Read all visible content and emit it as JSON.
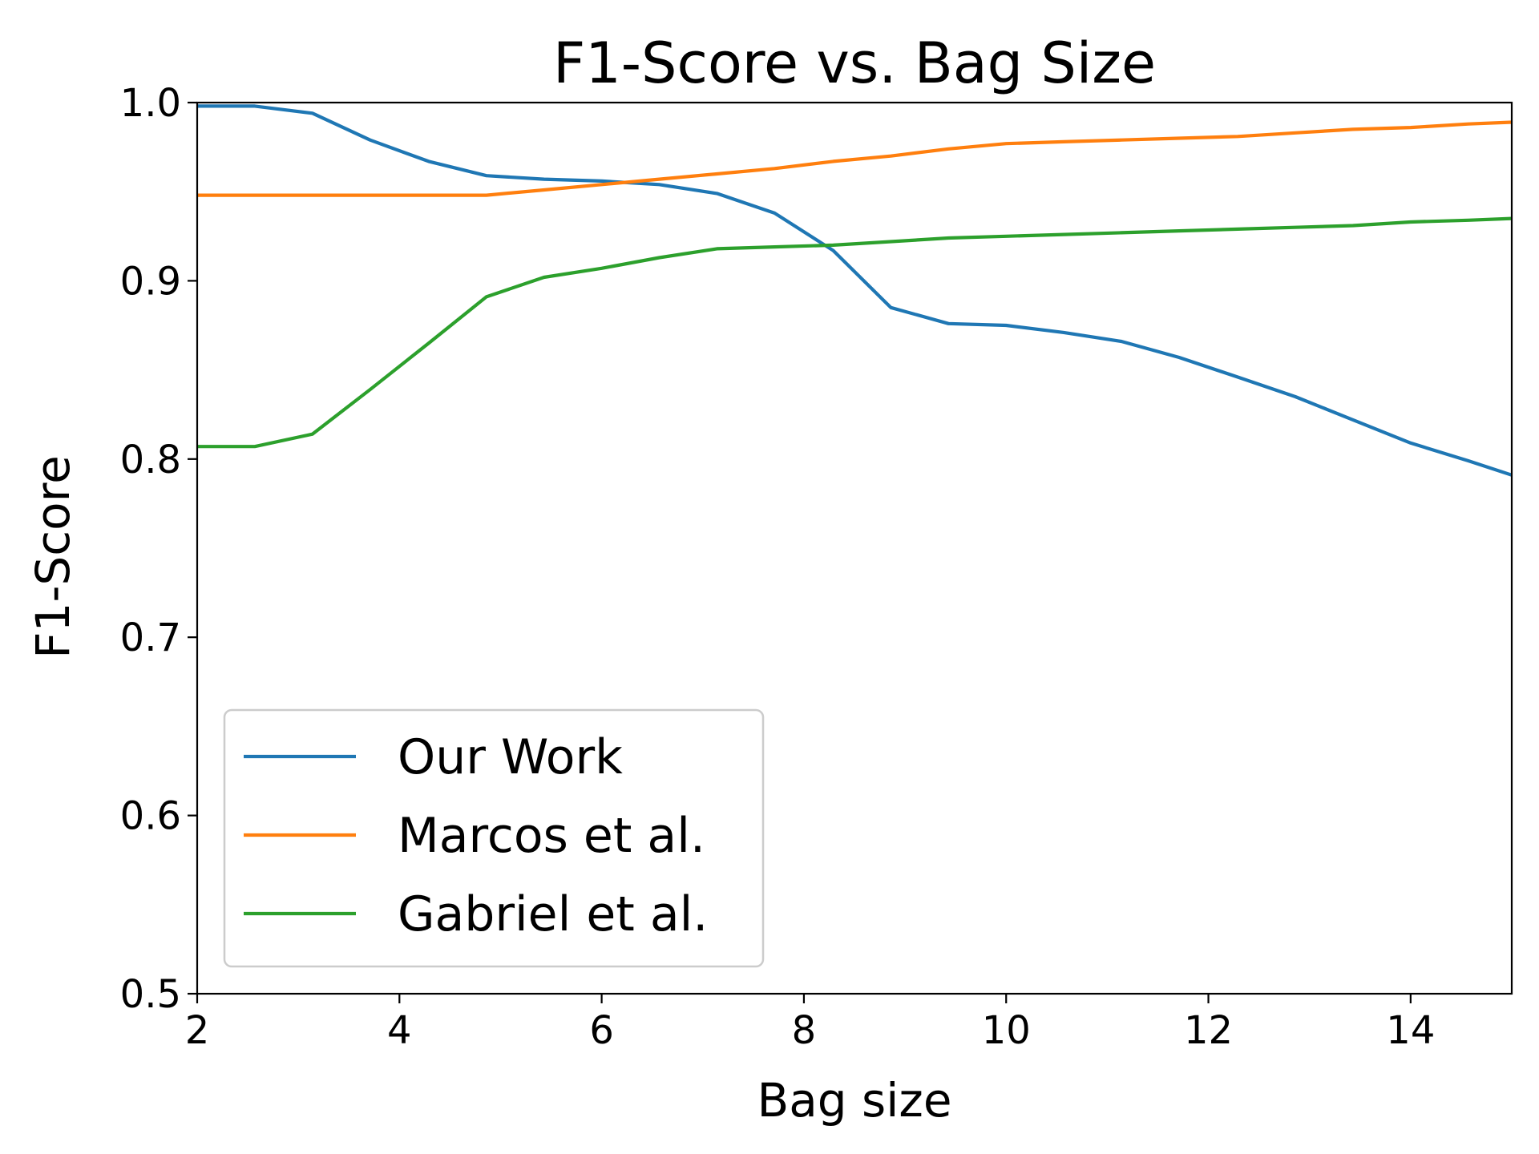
{
  "chart_data": {
    "type": "line",
    "title": "F1-Score vs. Bag Size",
    "xlabel": "Bag size",
    "ylabel": "F1-Score",
    "xlim": [
      2,
      15
    ],
    "ylim": [
      0.5,
      1.0
    ],
    "xticks": [
      2,
      4,
      6,
      8,
      10,
      12,
      14
    ],
    "yticks": [
      0.5,
      0.6,
      0.7,
      0.8,
      0.9,
      1.0
    ],
    "xtick_labels": [
      "2",
      "4",
      "6",
      "8",
      "10",
      "12",
      "14"
    ],
    "ytick_labels": [
      "0.5",
      "0.6",
      "0.7",
      "0.8",
      "0.9",
      "1.0"
    ],
    "grid": false,
    "legend_position": "lower-left",
    "series": [
      {
        "name": "Our Work",
        "color": "#1f77b4",
        "points": [
          [
            2,
            0.998
          ],
          [
            2.57,
            0.998
          ],
          [
            3.14,
            0.994
          ],
          [
            3.71,
            0.979
          ],
          [
            4.29,
            0.967
          ],
          [
            4.86,
            0.959
          ],
          [
            5.43,
            0.957
          ],
          [
            6,
            0.956
          ],
          [
            6.57,
            0.954
          ],
          [
            7.14,
            0.949
          ],
          [
            7.71,
            0.938
          ],
          [
            8.29,
            0.917
          ],
          [
            8.86,
            0.885
          ],
          [
            9.43,
            0.876
          ],
          [
            10,
            0.875
          ],
          [
            10.57,
            0.871
          ],
          [
            11.14,
            0.866
          ],
          [
            11.71,
            0.857
          ],
          [
            12.29,
            0.846
          ],
          [
            12.86,
            0.835
          ],
          [
            13.43,
            0.822
          ],
          [
            14,
            0.809
          ],
          [
            14.57,
            0.799
          ],
          [
            15,
            0.791
          ]
        ]
      },
      {
        "name": "Marcos et al.",
        "color": "#ff7f0e",
        "points": [
          [
            2,
            0.948
          ],
          [
            2.57,
            0.948
          ],
          [
            3.14,
            0.948
          ],
          [
            3.71,
            0.948
          ],
          [
            4.29,
            0.948
          ],
          [
            4.86,
            0.948
          ],
          [
            5.43,
            0.951
          ],
          [
            6,
            0.954
          ],
          [
            6.57,
            0.957
          ],
          [
            7.14,
            0.96
          ],
          [
            7.71,
            0.963
          ],
          [
            8.29,
            0.967
          ],
          [
            8.86,
            0.97
          ],
          [
            9.43,
            0.974
          ],
          [
            10,
            0.977
          ],
          [
            10.57,
            0.978
          ],
          [
            11.14,
            0.979
          ],
          [
            11.71,
            0.98
          ],
          [
            12.29,
            0.981
          ],
          [
            12.86,
            0.983
          ],
          [
            13.43,
            0.985
          ],
          [
            14,
            0.986
          ],
          [
            14.57,
            0.988
          ],
          [
            15,
            0.989
          ]
        ]
      },
      {
        "name": "Gabriel et al.",
        "color": "#2ca02c",
        "points": [
          [
            2,
            0.807
          ],
          [
            2.57,
            0.807
          ],
          [
            3.14,
            0.814
          ],
          [
            3.71,
            0.839
          ],
          [
            4.29,
            0.865
          ],
          [
            4.86,
            0.891
          ],
          [
            5.43,
            0.902
          ],
          [
            6,
            0.907
          ],
          [
            6.57,
            0.913
          ],
          [
            7.14,
            0.918
          ],
          [
            7.71,
            0.919
          ],
          [
            8.29,
            0.92
          ],
          [
            8.86,
            0.922
          ],
          [
            9.43,
            0.924
          ],
          [
            10,
            0.925
          ],
          [
            10.57,
            0.926
          ],
          [
            11.14,
            0.927
          ],
          [
            11.71,
            0.928
          ],
          [
            12.29,
            0.929
          ],
          [
            12.86,
            0.93
          ],
          [
            13.43,
            0.931
          ],
          [
            14,
            0.933
          ],
          [
            14.57,
            0.934
          ],
          [
            15,
            0.935
          ]
        ]
      }
    ]
  }
}
